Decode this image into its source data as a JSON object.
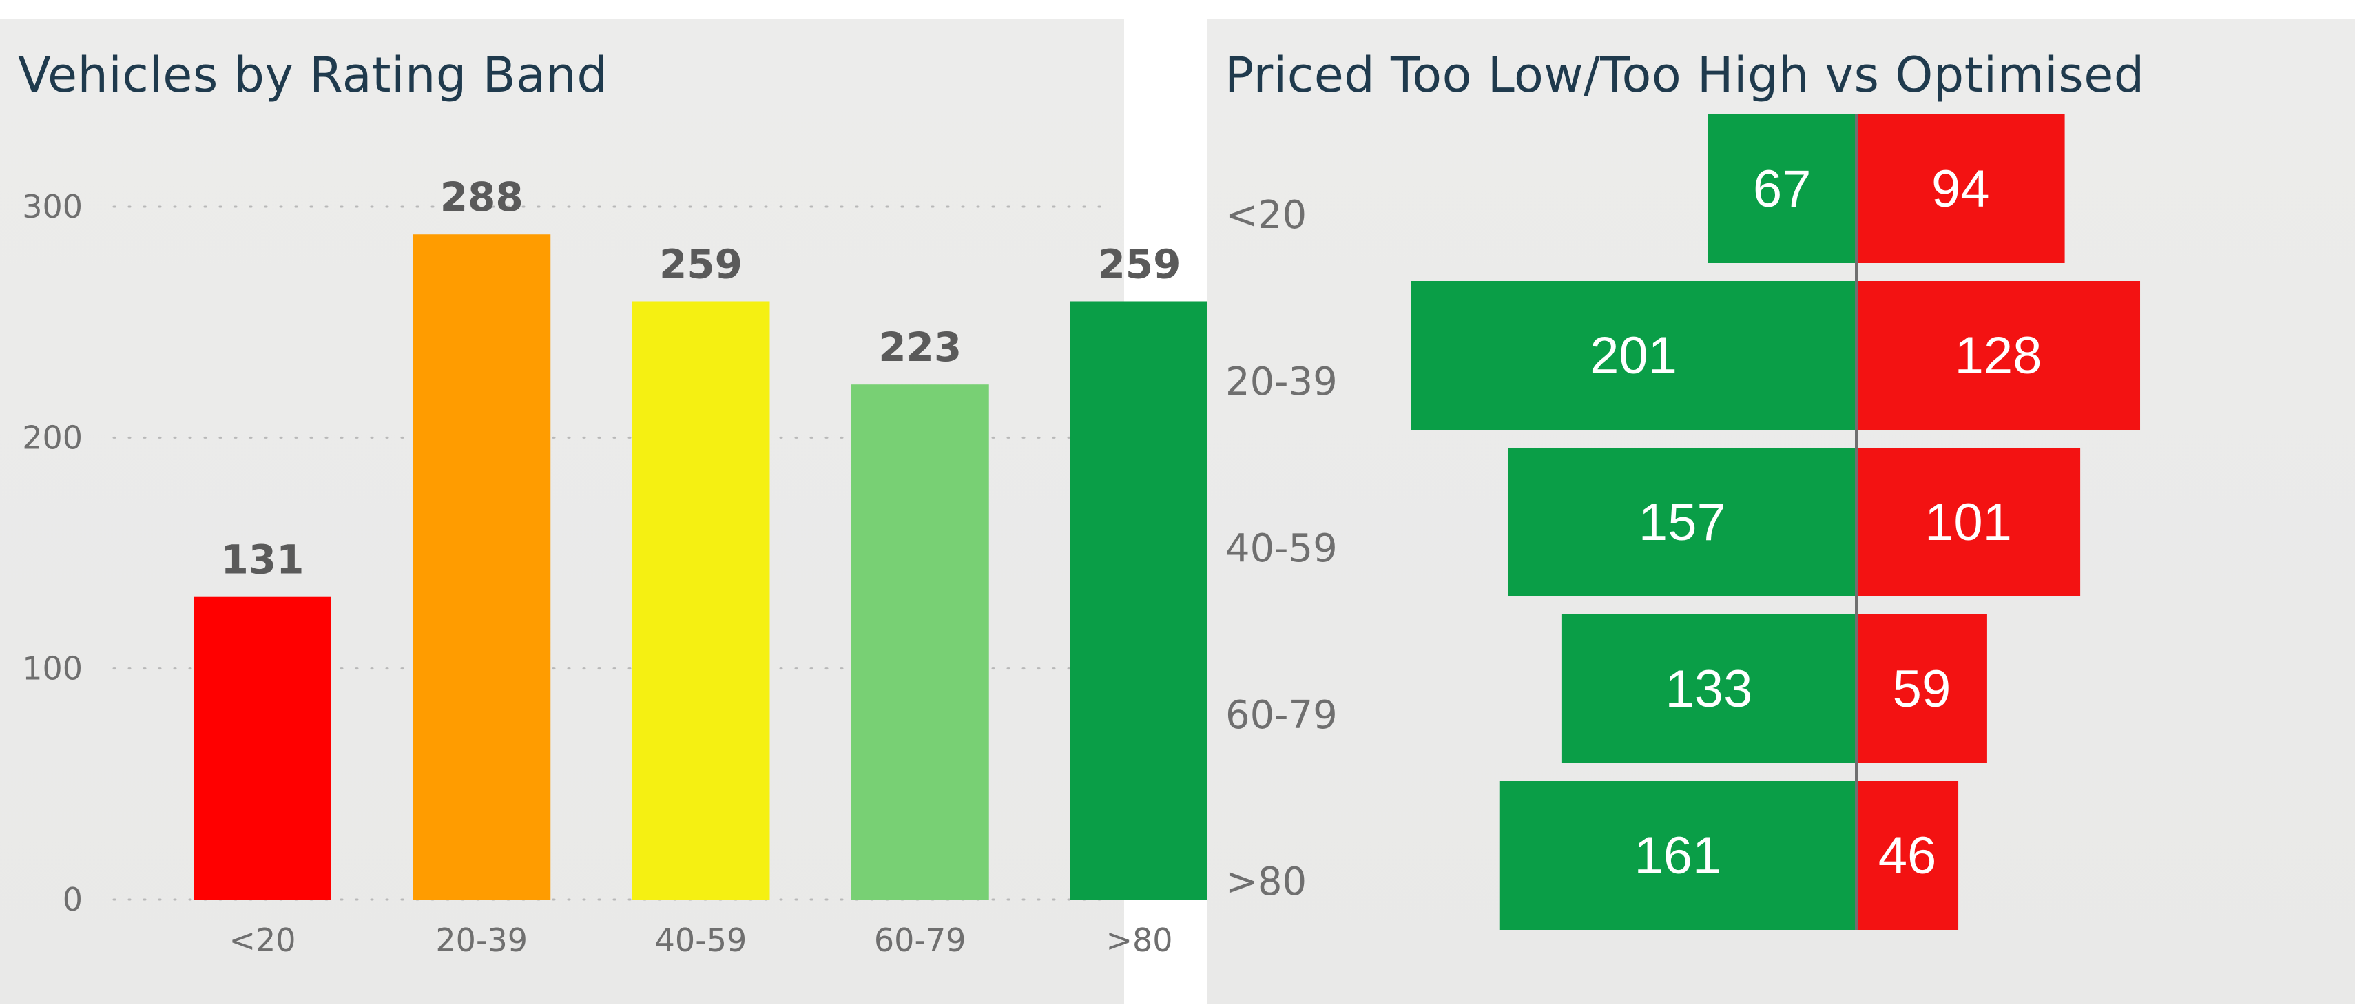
{
  "chart_data": [
    {
      "type": "bar",
      "title": "Vehicles by Rating Band",
      "categories": [
        "<20",
        "20-39",
        "40-59",
        "60-79",
        ">80"
      ],
      "values": [
        131,
        288,
        259,
        223,
        259
      ],
      "colors": [
        "#ff0000",
        "#ff9c00",
        "#f5f012",
        "#78d074",
        "#0a9e47"
      ],
      "yticks": [
        0,
        100,
        200,
        300
      ],
      "ylim": [
        0,
        330
      ],
      "grid": true,
      "xlabel": "",
      "ylabel": ""
    },
    {
      "type": "bar",
      "orientation": "horizontal-diverging",
      "title": "Priced Too Low/Too High vs Optimised",
      "categories": [
        "<20",
        "20-39",
        "40-59",
        "60-79",
        ">80"
      ],
      "series": [
        {
          "values": [
            67,
            201,
            157,
            133,
            161
          ],
          "color": "#0a9e47",
          "side": "left"
        },
        {
          "values": [
            94,
            128,
            101,
            59,
            46
          ],
          "color": "#f31212",
          "side": "right"
        }
      ],
      "xlim": [
        -201,
        128
      ],
      "grid": false
    }
  ]
}
